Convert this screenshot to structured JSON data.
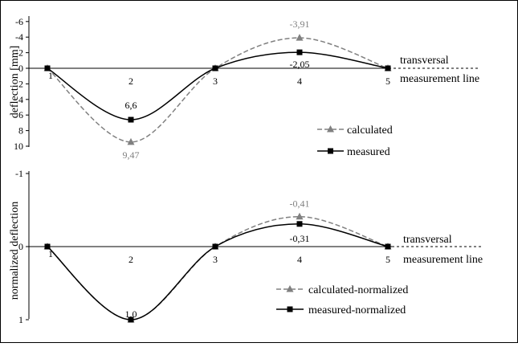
{
  "chart_data": [
    {
      "type": "line",
      "ylabel": "deflection [mm]",
      "ylim": [
        10,
        -6
      ],
      "y_axis": "inverted (positive down)",
      "yticks": [
        "-6",
        "-4",
        "-2",
        "0",
        "2",
        "4",
        "6",
        "8",
        "10"
      ],
      "x": [
        "1",
        "2",
        "3",
        "4",
        "5"
      ],
      "series": [
        {
          "name": "calculated",
          "style": "dashed-triangle",
          "color": "#808080",
          "values": [
            0,
            9.47,
            0,
            -3.91,
            0
          ]
        },
        {
          "name": "measured",
          "style": "solid-square",
          "color": "#000000",
          "values": [
            0,
            6.6,
            0,
            -2.05,
            0
          ]
        }
      ],
      "data_labels": [
        {
          "series": "calculated",
          "x": "2",
          "text": "9,47"
        },
        {
          "series": "calculated",
          "x": "4",
          "text": "-3,91"
        },
        {
          "series": "measured",
          "x": "2",
          "text": "6,6"
        },
        {
          "series": "measured",
          "x": "4",
          "text": "-2,05"
        }
      ],
      "annotation": [
        "transversal",
        "measurement line"
      ],
      "legend": "right"
    },
    {
      "type": "line",
      "ylabel": "normalized deflection",
      "ylim": [
        1,
        -1
      ],
      "y_axis": "inverted (positive down)",
      "yticks": [
        "-1",
        "0",
        "1"
      ],
      "x": [
        "1",
        "2",
        "3",
        "4",
        "5"
      ],
      "series": [
        {
          "name": "calculated-normalized",
          "style": "dashed-triangle",
          "color": "#808080",
          "values": [
            0,
            1.0,
            0,
            -0.41,
            0
          ]
        },
        {
          "name": "measured-normalized",
          "style": "solid-square",
          "color": "#000000",
          "values": [
            0,
            1.0,
            0,
            -0.31,
            0
          ]
        }
      ],
      "data_labels": [
        {
          "series": "calculated-normalized",
          "x": "4",
          "text": "-0,41"
        },
        {
          "series": "measured-normalized",
          "x": "4",
          "text": "-0,31"
        },
        {
          "series": "measured-normalized",
          "x": "2",
          "text": "1,0"
        }
      ],
      "annotation": [
        "transversal",
        "measurement line"
      ],
      "legend": "bottom-right"
    }
  ]
}
